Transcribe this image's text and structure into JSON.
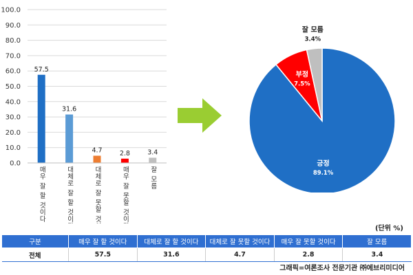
{
  "chart_data": [
    {
      "type": "bar",
      "categories": [
        "매우 잘 할 것이다",
        "대체로 잘 할 것이다",
        "대체로 잘 못할 것이다",
        "매우 잘 못할 것이다",
        "잘 모름"
      ],
      "values": [
        57.5,
        31.6,
        4.7,
        2.8,
        3.4
      ],
      "value_labels": [
        "57.5",
        "31.6",
        "4.7",
        "2.8",
        "3.4"
      ],
      "colors": [
        "#1f6fc5",
        "#5b9bd5",
        "#ed7d31",
        "#ff0000",
        "#bfbfbf"
      ],
      "ylim": [
        0,
        100
      ],
      "yticks": [
        "0.0",
        "10.0",
        "20.0",
        "30.0",
        "40.0",
        "50.0",
        "60.0",
        "70.0",
        "80.0",
        "90.0",
        "100.0"
      ],
      "grid": true
    },
    {
      "type": "pie",
      "slices": [
        {
          "label": "긍정",
          "value": 89.1,
          "value_label": "89.1%",
          "color": "#1f6fc5"
        },
        {
          "label": "부정",
          "value": 7.5,
          "value_label": "7.5%",
          "color": "#ff0000"
        },
        {
          "label": "잘 모름",
          "value": 3.4,
          "value_label": "3.4%",
          "color": "#bfbfbf"
        }
      ]
    }
  ],
  "unit_note": "(단위 %)",
  "table": {
    "headers": [
      "구분",
      "매우 잘 할 것이다",
      "대체로 잘 할 것이다",
      "대체로 잘 못할 것이다",
      "매우 잘 못할 것이다",
      "잘 모름"
    ],
    "rows": [
      [
        "전체",
        "57.5",
        "31.6",
        "4.7",
        "2.8",
        "3.4"
      ]
    ]
  },
  "credit": "그래픽=여론조사 전문기관 ㈜에브리미디어",
  "arrow": {
    "color": "#9acd32",
    "icon": "right-arrow-icon"
  }
}
